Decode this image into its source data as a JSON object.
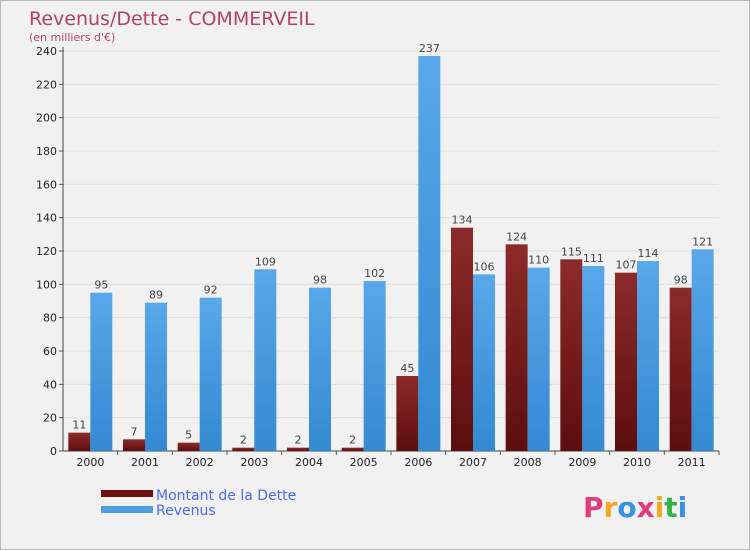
{
  "chart_data": {
    "type": "bar",
    "title": "Revenus/Dette - COMMERVEIL",
    "subtitle": "(en milliers d'€)",
    "categories": [
      "2000",
      "2001",
      "2002",
      "2003",
      "2004",
      "2005",
      "2006",
      "2007",
      "2008",
      "2009",
      "2010",
      "2011"
    ],
    "series": [
      {
        "name": "Montant de la Dette",
        "color": "#7a1c1c",
        "values": [
          11,
          7,
          5,
          2,
          2,
          2,
          45,
          134,
          124,
          115,
          107,
          98
        ]
      },
      {
        "name": "Revenus",
        "color": "#4f9fe2",
        "values": [
          95,
          89,
          92,
          109,
          98,
          102,
          237,
          106,
          110,
          111,
          114,
          121
        ]
      }
    ],
    "ylim": [
      0,
      240
    ],
    "yticks": [
      0,
      20,
      40,
      60,
      80,
      100,
      120,
      140,
      160,
      180,
      200,
      220,
      240
    ],
    "grid": true,
    "legend_position": "bottom-left"
  },
  "logo": {
    "letters": [
      "P",
      "r",
      "o",
      "x",
      "i",
      "t",
      "i"
    ],
    "colors": [
      "#e23b7c",
      "#f5a623",
      "#3a8fe8",
      "#e23b7c",
      "#f5a623",
      "#36b24a",
      "#3a8fe8"
    ]
  }
}
